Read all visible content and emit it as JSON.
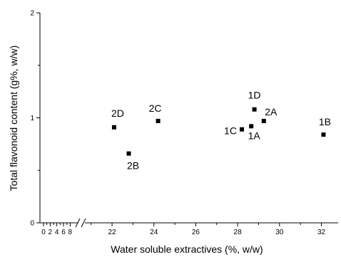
{
  "chart_data": {
    "type": "scatter",
    "xlabel": "Water soluble extractives (%, w/w)",
    "ylabel": "Total flavonoid content (g%, w/w)",
    "x_axis": {
      "broken": true,
      "segments": [
        {
          "range": [
            0,
            9
          ],
          "ticks": [
            "0",
            "2",
            "4",
            "6",
            "8"
          ],
          "tick_values": [
            0,
            2,
            4,
            6,
            8
          ]
        },
        {
          "range": [
            20.5,
            32.8
          ],
          "ticks": [
            "22",
            "24",
            "26",
            "28",
            "30",
            "32"
          ],
          "tick_values": [
            22,
            24,
            26,
            28,
            30,
            32
          ]
        }
      ]
    },
    "ylim": [
      0,
      2
    ],
    "y_ticks": [
      "0",
      "1",
      "2"
    ],
    "y_tick_values": [
      0,
      1,
      2
    ],
    "grid": false,
    "series": [
      {
        "marker": "square",
        "color": "#000000",
        "points": [
          {
            "label": "2D",
            "x": 22.1,
            "y": 0.91
          },
          {
            "label": "2B",
            "x": 22.8,
            "y": 0.66
          },
          {
            "label": "2C",
            "x": 24.2,
            "y": 0.97
          },
          {
            "label": "1C",
            "x": 28.2,
            "y": 0.89
          },
          {
            "label": "1A",
            "x": 28.65,
            "y": 0.92
          },
          {
            "label": "1D",
            "x": 28.8,
            "y": 1.08
          },
          {
            "label": "2A",
            "x": 29.25,
            "y": 0.97
          },
          {
            "label": "1B",
            "x": 32.1,
            "y": 0.84
          }
        ]
      }
    ]
  }
}
